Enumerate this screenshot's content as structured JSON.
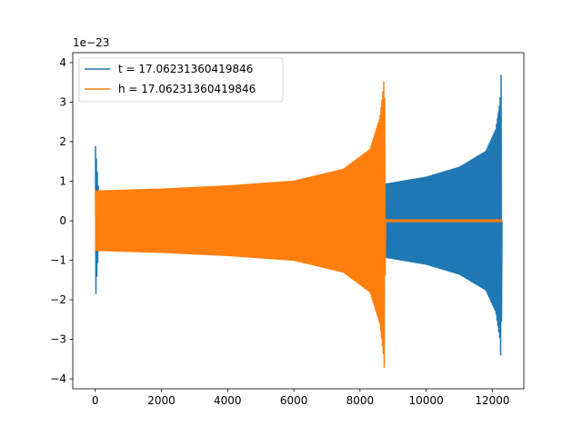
{
  "chart_data": {
    "type": "line",
    "title": "",
    "xlabel": "",
    "ylabel": "",
    "y_multiplier_label": "1e−23",
    "xlim": [
      -680,
      12950
    ],
    "ylim": [
      -4.25,
      4.25
    ],
    "x_ticks": [
      {
        "value": 0,
        "label": "0"
      },
      {
        "value": 2000,
        "label": "2000"
      },
      {
        "value": 4000,
        "label": "4000"
      },
      {
        "value": 6000,
        "label": "6000"
      },
      {
        "value": 8000,
        "label": "8000"
      },
      {
        "value": 10000,
        "label": "10000"
      },
      {
        "value": 12000,
        "label": "12000"
      }
    ],
    "y_ticks": [
      {
        "value": -4,
        "label": "−4"
      },
      {
        "value": -3,
        "label": "−3"
      },
      {
        "value": -2,
        "label": "−2"
      },
      {
        "value": -1,
        "label": "−1"
      },
      {
        "value": 0,
        "label": "0"
      },
      {
        "value": 1,
        "label": "1"
      },
      {
        "value": 2,
        "label": "2"
      },
      {
        "value": 3,
        "label": "3"
      },
      {
        "value": 4,
        "label": "4"
      }
    ],
    "grid": false,
    "legend_position": "upper-left",
    "series": [
      {
        "name": "t = 17.06231360419846",
        "color": "#1f77b4",
        "envelope": [
          {
            "x": 0,
            "upper": 1.97,
            "lower": -2.2
          },
          {
            "x": 40,
            "upper": 1.5,
            "lower": -1.5
          },
          {
            "x": 100,
            "upper": 0.75,
            "lower": -0.75
          },
          {
            "x": 2000,
            "upper": 0.78,
            "lower": -0.78
          },
          {
            "x": 4000,
            "upper": 0.85,
            "lower": -0.85
          },
          {
            "x": 6000,
            "upper": 0.92,
            "lower": -0.92
          },
          {
            "x": 8000,
            "upper": 0.93,
            "lower": -0.93
          },
          {
            "x": 8800,
            "upper": 0.93,
            "lower": -0.93
          },
          {
            "x": 10000,
            "upper": 1.1,
            "lower": -1.1
          },
          {
            "x": 11000,
            "upper": 1.35,
            "lower": -1.35
          },
          {
            "x": 11800,
            "upper": 1.75,
            "lower": -1.75
          },
          {
            "x": 12100,
            "upper": 2.3,
            "lower": -2.3
          },
          {
            "x": 12230,
            "upper": 3.0,
            "lower": -3.0
          },
          {
            "x": 12270,
            "upper": 3.82,
            "lower": -3.82
          },
          {
            "x": 12290,
            "upper": 0.02,
            "lower": -0.02
          }
        ]
      },
      {
        "name": "h = 17.06231360419846",
        "color": "#ff7f0e",
        "envelope": [
          {
            "x": 10,
            "upper": 0.75,
            "lower": -0.75
          },
          {
            "x": 2000,
            "upper": 0.8,
            "lower": -0.8
          },
          {
            "x": 4000,
            "upper": 0.88,
            "lower": -0.88
          },
          {
            "x": 6000,
            "upper": 1.0,
            "lower": -1.0
          },
          {
            "x": 7500,
            "upper": 1.3,
            "lower": -1.3
          },
          {
            "x": 8300,
            "upper": 1.8,
            "lower": -1.8
          },
          {
            "x": 8600,
            "upper": 2.6,
            "lower": -2.6
          },
          {
            "x": 8710,
            "upper": 3.4,
            "lower": -3.4
          },
          {
            "x": 8740,
            "upper": 3.8,
            "lower": -3.82
          },
          {
            "x": 8770,
            "upper": 0.02,
            "lower": -0.02
          },
          {
            "x": 12290,
            "upper": 0.02,
            "lower": -0.02
          }
        ]
      }
    ]
  }
}
